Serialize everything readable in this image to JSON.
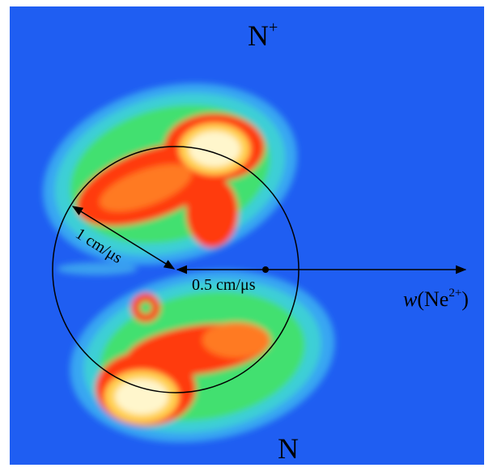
{
  "labels": {
    "top": {
      "text": "N",
      "sup": "+"
    },
    "bottom": "N",
    "radius": "1 cm/μs",
    "offset": "0.5 cm/μs",
    "velocity": {
      "italic": "w",
      "text": "(Ne",
      "sup": "2+",
      "close": ")"
    }
  }
}
